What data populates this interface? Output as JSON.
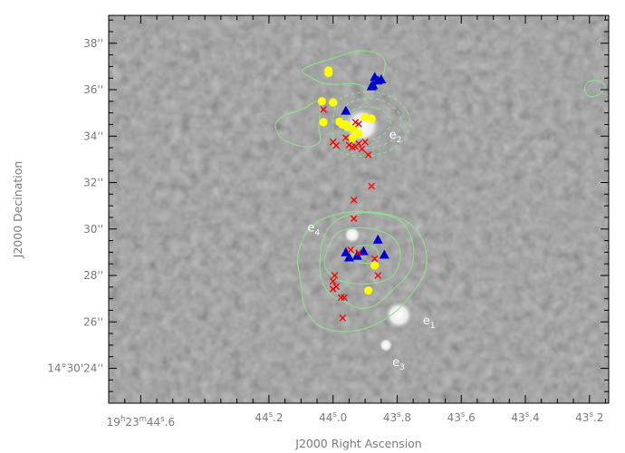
{
  "chart_data": {
    "type": "scatter",
    "title": "",
    "xlabel": "J2000 Right Ascension",
    "ylabel": "J2000 Decination",
    "xlim_sec": [
      44.7,
      43.14
    ],
    "ylim_arcsec": [
      22.5,
      39.2
    ],
    "x_ticks": [
      {
        "v": 44.6,
        "label": "19h23m44s.6",
        "h": "19",
        "m": "23",
        "sec": "44",
        "frac": ".6"
      },
      {
        "v": 44.2,
        "label": "44s.2",
        "sec": "44",
        "frac": ".2"
      },
      {
        "v": 44.0,
        "label": "44s.0",
        "sec": "44",
        "frac": ".0"
      },
      {
        "v": 43.8,
        "label": "43s.8",
        "sec": "43",
        "frac": ".8"
      },
      {
        "v": 43.6,
        "label": "43s.6",
        "sec": "43",
        "frac": ".6"
      },
      {
        "v": 43.4,
        "label": "43s.4",
        "sec": "43",
        "frac": ".4"
      },
      {
        "v": 43.2,
        "label": "43s.2",
        "sec": "43",
        "frac": ".2"
      }
    ],
    "y_ticks": [
      {
        "v": 38,
        "label": "38''"
      },
      {
        "v": 36,
        "label": "36''"
      },
      {
        "v": 34,
        "label": "34''"
      },
      {
        "v": 32,
        "label": "32''"
      },
      {
        "v": 30,
        "label": "30''"
      },
      {
        "v": 28,
        "label": "28''"
      },
      {
        "v": 26,
        "label": "26''"
      },
      {
        "v": 24,
        "label": "14°30'24''"
      }
    ],
    "series": [
      {
        "marker": "circle",
        "color": "#ffff00",
        "points": [
          [
            44.014,
            36.82
          ],
          [
            44.014,
            36.72
          ],
          [
            44.035,
            35.5
          ],
          [
            44.0,
            35.45
          ],
          [
            44.03,
            34.6
          ],
          [
            43.98,
            34.62
          ],
          [
            43.97,
            34.5
          ],
          [
            43.955,
            34.4
          ],
          [
            43.935,
            34.3
          ],
          [
            43.92,
            34.1
          ],
          [
            43.9,
            34.8
          ],
          [
            43.88,
            34.75
          ],
          [
            43.94,
            33.9
          ],
          [
            43.96,
            34.5
          ],
          [
            43.87,
            28.43
          ],
          [
            43.89,
            27.35
          ]
        ]
      },
      {
        "marker": "triangle",
        "color": "#0000cc",
        "points": [
          [
            43.87,
            36.55
          ],
          [
            43.86,
            36.4
          ],
          [
            43.88,
            36.15
          ],
          [
            43.85,
            36.45
          ],
          [
            43.875,
            36.2
          ],
          [
            43.96,
            35.1
          ],
          [
            43.86,
            29.55
          ],
          [
            43.84,
            28.9
          ],
          [
            43.905,
            29.05
          ],
          [
            43.925,
            28.85
          ],
          [
            43.95,
            28.78
          ],
          [
            43.96,
            29.0
          ]
        ]
      },
      {
        "marker": "x",
        "color": "#ff0000",
        "points": [
          [
            44.03,
            35.15
          ],
          [
            43.93,
            34.6
          ],
          [
            43.92,
            34.52
          ],
          [
            43.96,
            33.93
          ],
          [
            44.0,
            33.75
          ],
          [
            43.99,
            33.6
          ],
          [
            43.95,
            33.62
          ],
          [
            43.94,
            33.52
          ],
          [
            43.92,
            33.68
          ],
          [
            43.9,
            33.75
          ],
          [
            43.89,
            33.2
          ],
          [
            43.93,
            33.55
          ],
          [
            43.91,
            33.45
          ],
          [
            43.88,
            31.85
          ],
          [
            43.935,
            31.25
          ],
          [
            43.935,
            30.45
          ],
          [
            43.945,
            29.1
          ],
          [
            43.92,
            28.98
          ],
          [
            43.87,
            28.72
          ],
          [
            43.86,
            28.0
          ],
          [
            43.995,
            28.0
          ],
          [
            44.0,
            27.75
          ],
          [
            43.99,
            27.52
          ],
          [
            44.0,
            27.42
          ],
          [
            43.975,
            27.05
          ],
          [
            43.965,
            27.05
          ],
          [
            43.97,
            26.17
          ]
        ]
      }
    ],
    "sources": [
      {
        "name": "e1",
        "x": 43.795,
        "y": 26.3,
        "r": 0.42
      },
      {
        "name": "e3",
        "x": 43.835,
        "y": 25.0,
        "r": 0.2
      },
      {
        "name": "e2",
        "x": 43.91,
        "y": 34.45,
        "r": 0.55
      },
      {
        "name": "e4",
        "x": 43.94,
        "y": 29.75,
        "r": 0.25
      }
    ],
    "annotations": [
      {
        "base": "e",
        "sub": "1",
        "x": 43.72,
        "y": 25.9
      },
      {
        "base": "e",
        "sub": "2",
        "x": 43.825,
        "y": 33.9
      },
      {
        "base": "e",
        "sub": "3",
        "x": 43.815,
        "y": 24.1
      },
      {
        "base": "e",
        "sub": "4",
        "x": 44.08,
        "y": 29.9
      }
    ],
    "contours": [
      {
        "style": "solid",
        "points": [
          [
            44.09,
            36.7
          ],
          [
            44.02,
            36.25
          ],
          [
            43.93,
            36.25
          ],
          [
            43.88,
            36.0
          ],
          [
            43.855,
            36.25
          ],
          [
            43.84,
            36.8
          ],
          [
            43.84,
            37.3
          ],
          [
            43.87,
            37.6
          ],
          [
            43.93,
            37.65
          ],
          [
            44.0,
            37.35
          ],
          [
            44.06,
            37.1
          ],
          [
            44.09,
            36.9
          ]
        ]
      },
      {
        "style": "solid",
        "points": [
          [
            44.09,
            35.2
          ],
          [
            44.05,
            35.5
          ],
          [
            44.04,
            35.1
          ],
          [
            44.045,
            34.4
          ],
          [
            44.04,
            33.8
          ],
          [
            44.07,
            33.55
          ],
          [
            44.11,
            33.6
          ],
          [
            44.16,
            33.9
          ],
          [
            44.18,
            34.5
          ],
          [
            44.15,
            34.9
          ]
        ]
      },
      {
        "style": "solid",
        "points": [
          [
            43.19,
            35.7
          ],
          [
            43.165,
            35.85
          ],
          [
            43.15,
            36.1
          ],
          [
            43.165,
            36.35
          ],
          [
            43.19,
            36.4
          ],
          [
            43.21,
            36.25
          ],
          [
            43.215,
            35.95
          ],
          [
            43.205,
            35.75
          ]
        ]
      },
      {
        "style": "dashed",
        "points": [
          [
            43.955,
            34.95
          ],
          [
            43.92,
            35.22
          ],
          [
            43.88,
            35.25
          ],
          [
            43.84,
            35.05
          ],
          [
            43.82,
            34.6
          ],
          [
            43.84,
            34.1
          ],
          [
            43.88,
            33.85
          ],
          [
            43.92,
            33.85
          ],
          [
            43.95,
            34.0
          ],
          [
            43.965,
            34.35
          ]
        ]
      },
      {
        "style": "dashed",
        "points": [
          [
            43.97,
            34.5
          ],
          [
            43.96,
            35.3
          ],
          [
            43.91,
            35.6
          ],
          [
            43.85,
            35.55
          ],
          [
            43.8,
            35.1
          ],
          [
            43.79,
            34.5
          ],
          [
            43.81,
            33.9
          ],
          [
            43.86,
            33.55
          ],
          [
            43.92,
            33.5
          ],
          [
            43.96,
            33.75
          ]
        ]
      },
      {
        "style": "dashed",
        "points": [
          [
            44.0,
            34.0
          ],
          [
            43.99,
            35.4
          ],
          [
            43.93,
            35.85
          ],
          [
            43.85,
            35.85
          ],
          [
            43.78,
            35.3
          ],
          [
            43.76,
            34.4
          ],
          [
            43.8,
            33.6
          ],
          [
            43.86,
            33.2
          ],
          [
            43.93,
            33.15
          ],
          [
            43.99,
            33.4
          ]
        ]
      },
      {
        "style": "solid",
        "points": [
          [
            43.865,
            28.7
          ],
          [
            43.86,
            29.0
          ],
          [
            43.875,
            29.25
          ],
          [
            43.9,
            29.3
          ],
          [
            43.93,
            29.2
          ],
          [
            43.94,
            28.95
          ],
          [
            43.925,
            28.6
          ],
          [
            43.895,
            28.52
          ],
          [
            43.875,
            28.58
          ]
        ]
      },
      {
        "style": "solid",
        "points": [
          [
            44.02,
            29.0
          ],
          [
            43.985,
            29.85
          ],
          [
            43.9,
            30.05
          ],
          [
            43.82,
            29.7
          ],
          [
            43.79,
            28.95
          ],
          [
            43.81,
            28.05
          ],
          [
            43.86,
            27.7
          ],
          [
            43.93,
            27.65
          ],
          [
            43.99,
            27.85
          ],
          [
            44.025,
            28.4
          ]
        ]
      },
      {
        "style": "solid",
        "points": [
          [
            44.04,
            28.1
          ],
          [
            44.03,
            29.6
          ],
          [
            43.98,
            30.45
          ],
          [
            43.89,
            30.7
          ],
          [
            43.79,
            30.35
          ],
          [
            43.75,
            29.3
          ],
          [
            43.76,
            28.2
          ],
          [
            43.82,
            27.3
          ],
          [
            43.87,
            26.7
          ],
          [
            43.92,
            26.6
          ],
          [
            43.96,
            26.85
          ],
          [
            44.01,
            27.2
          ]
        ]
      },
      {
        "style": "solid",
        "points": [
          [
            44.1,
            27.7
          ],
          [
            44.11,
            28.8
          ],
          [
            44.08,
            29.9
          ],
          [
            44.01,
            30.55
          ],
          [
            43.9,
            30.75
          ],
          [
            43.78,
            30.4
          ],
          [
            43.72,
            29.5
          ],
          [
            43.71,
            28.3
          ],
          [
            43.75,
            27.3
          ],
          [
            43.8,
            26.5
          ],
          [
            43.86,
            25.95
          ],
          [
            43.92,
            25.65
          ],
          [
            43.99,
            25.6
          ],
          [
            44.05,
            25.9
          ],
          [
            44.09,
            26.7
          ]
        ]
      }
    ]
  }
}
